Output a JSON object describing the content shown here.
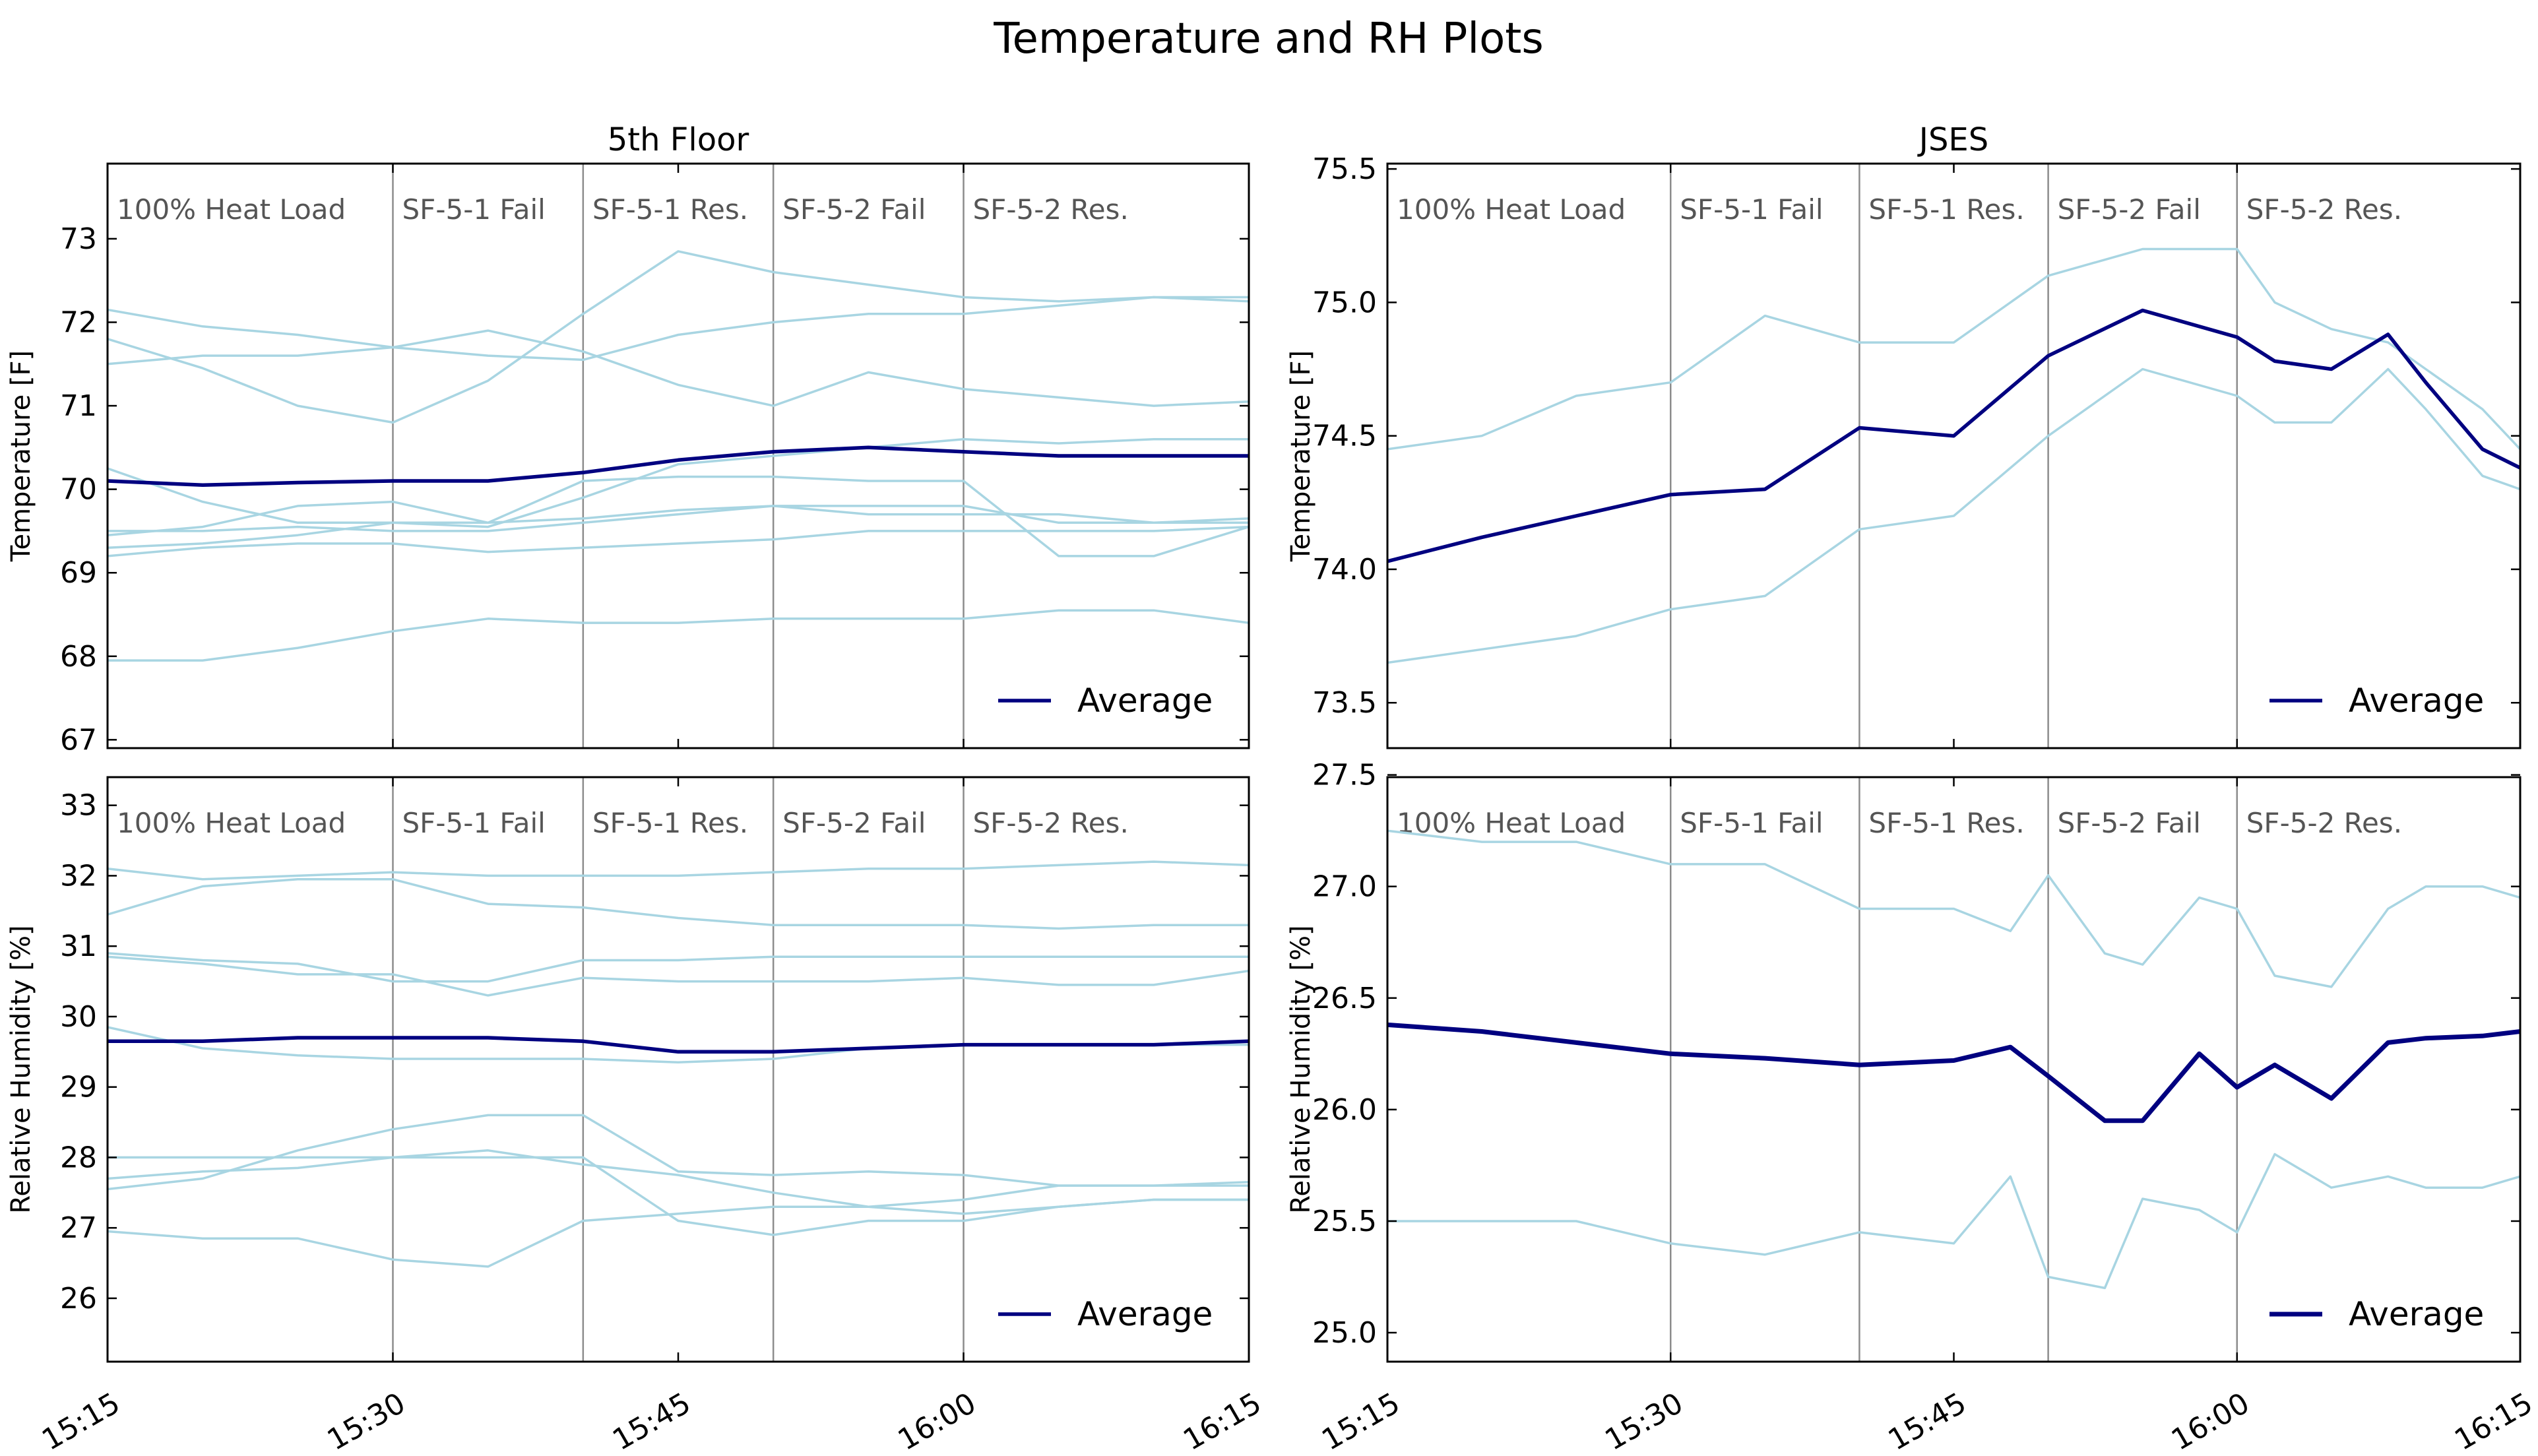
{
  "figure": {
    "title": "Temperature and RH Plots",
    "background": "#ffffff"
  },
  "colors": {
    "sensor": "#a8d5e2",
    "average": "#000080",
    "phase_line": "#8c8c8c",
    "phase_text": "#555555"
  },
  "legend": {
    "label": "Average",
    "position": "lower-right"
  },
  "phases": [
    {
      "start": "15:15",
      "label": "100% Heat Load"
    },
    {
      "start": "15:30",
      "label": "SF-5-1 Fail"
    },
    {
      "start": "15:40",
      "label": "SF-5-1 Res."
    },
    {
      "start": "15:50",
      "label": "SF-5-2 Fail"
    },
    {
      "start": "16:00",
      "label": "SF-5-2 Res."
    }
  ],
  "x_axis": {
    "range": [
      "15:15",
      "16:15"
    ],
    "ticks": [
      "15:15",
      "15:30",
      "15:45",
      "16:00",
      "16:15"
    ]
  },
  "chart_data": [
    {
      "id": "temp-5th",
      "type": "line",
      "title": "5th Floor",
      "ylabel": "Temperature [F]",
      "ylim": [
        66.9,
        73.9
      ],
      "yticks": [
        "67",
        "68",
        "69",
        "70",
        "71",
        "72",
        "73"
      ],
      "x": [
        0,
        5,
        10,
        15,
        20,
        25,
        30,
        35,
        40,
        45,
        50,
        55,
        60
      ],
      "series": [
        {
          "values": [
            72.15,
            71.95,
            71.85,
            71.7,
            71.6,
            71.55,
            71.85,
            72.0,
            72.1,
            72.1,
            72.2,
            72.3,
            72.25
          ]
        },
        {
          "values": [
            71.8,
            71.45,
            71.0,
            70.8,
            71.3,
            72.1,
            72.85,
            72.6,
            72.45,
            72.3,
            72.25,
            72.3,
            72.3
          ]
        },
        {
          "values": [
            71.5,
            71.6,
            71.6,
            71.7,
            71.9,
            71.65,
            71.25,
            71.0,
            71.4,
            71.2,
            71.1,
            71.0,
            71.05
          ]
        },
        {
          "values": [
            70.25,
            69.85,
            69.6,
            69.6,
            69.55,
            69.9,
            70.3,
            70.4,
            70.5,
            70.6,
            70.55,
            70.6,
            70.6
          ]
        },
        {
          "values": [
            69.5,
            69.5,
            69.55,
            69.5,
            69.5,
            69.6,
            69.7,
            69.8,
            69.7,
            69.7,
            69.7,
            69.6,
            69.65
          ]
        },
        {
          "values": [
            69.3,
            69.35,
            69.45,
            69.6,
            69.6,
            69.65,
            69.75,
            69.8,
            69.8,
            69.8,
            69.6,
            69.6,
            69.6
          ]
        },
        {
          "values": [
            69.2,
            69.3,
            69.35,
            69.35,
            69.25,
            69.3,
            69.35,
            69.4,
            69.5,
            69.5,
            69.5,
            69.5,
            69.55
          ]
        },
        {
          "values": [
            69.45,
            69.55,
            69.8,
            69.85,
            69.6,
            70.1,
            70.15,
            70.15,
            70.1,
            70.1,
            69.2,
            69.2,
            69.55
          ]
        },
        {
          "values": [
            67.95,
            67.95,
            68.1,
            68.3,
            68.45,
            68.4,
            68.4,
            68.45,
            68.45,
            68.45,
            68.55,
            68.55,
            68.4
          ]
        },
        {
          "name": "Average",
          "values": [
            70.1,
            70.05,
            70.08,
            70.1,
            70.1,
            70.2,
            70.35,
            70.45,
            70.5,
            70.45,
            70.4,
            70.4,
            70.4
          ]
        }
      ]
    },
    {
      "id": "temp-jses",
      "type": "line",
      "title": "JSES",
      "ylabel": "Temperature [F]",
      "ylim": [
        73.33,
        75.52
      ],
      "yticks": [
        "73.5",
        "74.0",
        "74.5",
        "75.0",
        "75.5"
      ],
      "x": [
        0,
        5,
        10,
        15,
        20,
        25,
        30,
        35,
        40,
        45,
        47,
        50,
        53,
        55,
        58,
        60
      ],
      "series": [
        {
          "values": [
            74.45,
            74.5,
            74.65,
            74.7,
            74.95,
            74.85,
            74.85,
            75.1,
            75.2,
            75.2,
            75.0,
            74.9,
            74.85,
            74.75,
            74.6,
            74.45
          ]
        },
        {
          "values": [
            73.65,
            73.7,
            73.75,
            73.85,
            73.9,
            74.15,
            74.2,
            74.5,
            74.75,
            74.65,
            74.55,
            74.55,
            74.75,
            74.6,
            74.35,
            74.3
          ]
        },
        {
          "name": "Average",
          "values": [
            74.03,
            74.12,
            74.2,
            74.28,
            74.3,
            74.53,
            74.5,
            74.8,
            74.97,
            74.87,
            74.78,
            74.75,
            74.88,
            74.7,
            74.45,
            74.38
          ]
        }
      ]
    },
    {
      "id": "rh-5th",
      "type": "line",
      "title": "",
      "ylabel": "Relative Humidity [%]",
      "ylim": [
        25.1,
        33.4
      ],
      "yticks": [
        "26",
        "27",
        "28",
        "29",
        "30",
        "31",
        "32",
        "33"
      ],
      "x": [
        0,
        5,
        10,
        15,
        20,
        25,
        30,
        35,
        40,
        45,
        50,
        55,
        60
      ],
      "series": [
        {
          "values": [
            32.1,
            31.95,
            32.0,
            32.05,
            32.0,
            32.0,
            32.0,
            32.05,
            32.1,
            32.1,
            32.15,
            32.2,
            32.15
          ]
        },
        {
          "values": [
            31.45,
            31.85,
            31.95,
            31.95,
            31.6,
            31.55,
            31.4,
            31.3,
            31.3,
            31.3,
            31.25,
            31.3,
            31.3
          ]
        },
        {
          "values": [
            30.9,
            30.8,
            30.75,
            30.5,
            30.5,
            30.8,
            30.8,
            30.85,
            30.85,
            30.85,
            30.85,
            30.85,
            30.85
          ]
        },
        {
          "values": [
            30.85,
            30.75,
            30.6,
            30.6,
            30.3,
            30.55,
            30.5,
            30.5,
            30.5,
            30.55,
            30.45,
            30.45,
            30.65
          ]
        },
        {
          "values": [
            29.85,
            29.55,
            29.45,
            29.4,
            29.4,
            29.4,
            29.35,
            29.4,
            29.55,
            29.6,
            29.6,
            29.6,
            29.6
          ]
        },
        {
          "values": [
            27.55,
            27.7,
            28.1,
            28.4,
            28.6,
            28.6,
            27.8,
            27.75,
            27.8,
            27.75,
            27.6,
            27.6,
            27.6
          ]
        },
        {
          "values": [
            27.7,
            27.8,
            27.85,
            28.0,
            28.1,
            27.9,
            27.75,
            27.5,
            27.3,
            27.4,
            27.6,
            27.6,
            27.65
          ]
        },
        {
          "values": [
            26.95,
            26.85,
            26.85,
            26.55,
            26.45,
            27.1,
            27.2,
            27.3,
            27.3,
            27.2,
            27.3,
            27.4,
            27.4
          ]
        },
        {
          "values": [
            28.0,
            28.0,
            28.0,
            28.0,
            28.0,
            28.0,
            27.1,
            26.9,
            27.1,
            27.1,
            27.3,
            27.4,
            27.4
          ]
        },
        {
          "name": "Average",
          "values": [
            29.65,
            29.65,
            29.7,
            29.7,
            29.7,
            29.65,
            29.5,
            29.5,
            29.55,
            29.6,
            29.6,
            29.6,
            29.65
          ]
        }
      ]
    },
    {
      "id": "rh-jses",
      "type": "line",
      "title": "",
      "ylabel": "Relative Humidity [%]",
      "ylim": [
        24.87,
        27.49
      ],
      "yticks": [
        "25.0",
        "25.5",
        "26.0",
        "26.5",
        "27.0",
        "27.5"
      ],
      "x": [
        0,
        5,
        10,
        15,
        20,
        25,
        30,
        33,
        35,
        38,
        40,
        43,
        45,
        47,
        50,
        53,
        55,
        58,
        60
      ],
      "series": [
        {
          "values": [
            27.25,
            27.2,
            27.2,
            27.1,
            27.1,
            26.9,
            26.9,
            26.8,
            27.05,
            26.7,
            26.65,
            26.95,
            26.9,
            26.6,
            26.55,
            26.9,
            27.0,
            27.0,
            26.95
          ]
        },
        {
          "values": [
            25.5,
            25.5,
            25.5,
            25.4,
            25.35,
            25.45,
            25.4,
            25.7,
            25.25,
            25.2,
            25.6,
            25.55,
            25.45,
            25.8,
            25.65,
            25.7,
            25.65,
            25.65,
            25.7
          ]
        },
        {
          "name": "Average",
          "values": [
            26.38,
            26.35,
            26.3,
            26.25,
            26.23,
            26.2,
            26.22,
            26.28,
            26.15,
            25.95,
            25.95,
            26.25,
            26.1,
            26.2,
            26.05,
            26.3,
            26.32,
            26.33,
            26.35
          ]
        }
      ]
    }
  ]
}
